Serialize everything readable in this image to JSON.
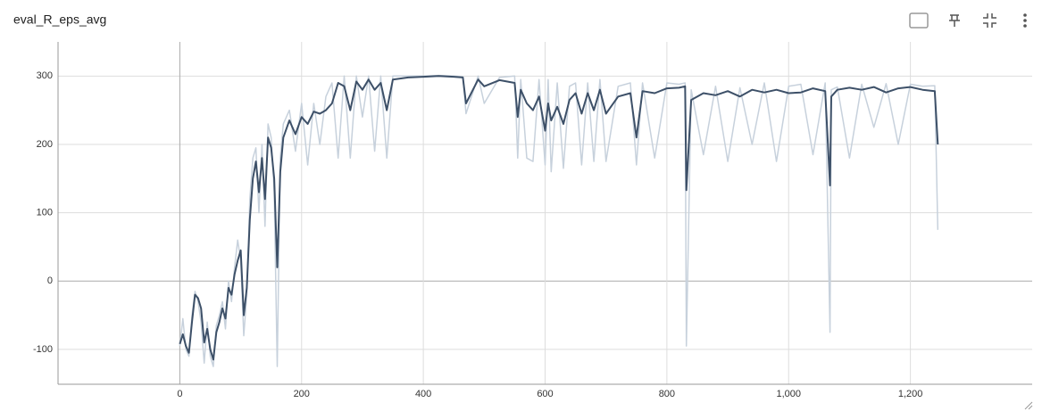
{
  "chart_data": {
    "type": "line",
    "title": "eval_R_eps_avg",
    "x": [
      0,
      5,
      10,
      15,
      20,
      25,
      30,
      35,
      40,
      45,
      50,
      55,
      60,
      65,
      70,
      75,
      80,
      85,
      90,
      95,
      100,
      105,
      110,
      115,
      120,
      125,
      130,
      135,
      140,
      145,
      150,
      155,
      160,
      165,
      170,
      180,
      190,
      200,
      210,
      220,
      230,
      240,
      250,
      260,
      270,
      280,
      290,
      300,
      310,
      320,
      330,
      340,
      350,
      375,
      400,
      425,
      450,
      465,
      470,
      490,
      500,
      525,
      550,
      555,
      560,
      570,
      580,
      590,
      600,
      605,
      610,
      620,
      630,
      640,
      650,
      660,
      670,
      680,
      690,
      700,
      720,
      740,
      750,
      760,
      780,
      800,
      820,
      830,
      832,
      840,
      860,
      880,
      900,
      920,
      940,
      960,
      980,
      1000,
      1020,
      1040,
      1060,
      1068,
      1070,
      1080,
      1100,
      1120,
      1140,
      1160,
      1180,
      1200,
      1220,
      1240,
      1245
    ],
    "series": [
      {
        "color": "#c7d1dc",
        "values": [
          -95,
          -55,
          -100,
          -110,
          -50,
          -15,
          -30,
          -60,
          -120,
          -60,
          -110,
          -125,
          -65,
          -50,
          -30,
          -70,
          0,
          -30,
          20,
          60,
          30,
          -80,
          -20,
          120,
          180,
          195,
          100,
          200,
          80,
          230,
          210,
          130,
          -125,
          180,
          230,
          250,
          190,
          260,
          170,
          260,
          200,
          270,
          290,
          180,
          300,
          180,
          300,
          240,
          300,
          190,
          300,
          180,
          300,
          300,
          300,
          301,
          300,
          299,
          245,
          300,
          260,
          298,
          300,
          180,
          295,
          180,
          175,
          295,
          170,
          295,
          160,
          290,
          165,
          285,
          290,
          170,
          290,
          175,
          295,
          175,
          285,
          290,
          170,
          290,
          180,
          290,
          288,
          290,
          -95,
          280,
          185,
          285,
          175,
          283,
          200,
          290,
          175,
          285,
          288,
          185,
          290,
          -75,
          280,
          284,
          180,
          288,
          225,
          289,
          200,
          288,
          285,
          286,
          75
        ]
      },
      {
        "color": "#3d5068",
        "values": [
          -92,
          -78,
          -95,
          -105,
          -60,
          -20,
          -25,
          -40,
          -90,
          -70,
          -100,
          -115,
          -75,
          -60,
          -40,
          -55,
          -10,
          -20,
          10,
          30,
          45,
          -50,
          -10,
          90,
          150,
          175,
          130,
          180,
          120,
          210,
          195,
          150,
          20,
          160,
          210,
          235,
          215,
          240,
          230,
          248,
          245,
          250,
          260,
          290,
          285,
          250,
          292,
          280,
          295,
          280,
          290,
          250,
          295,
          298,
          299,
          300,
          299,
          298,
          260,
          295,
          285,
          294,
          290,
          240,
          280,
          260,
          250,
          270,
          220,
          260,
          235,
          255,
          230,
          265,
          275,
          245,
          275,
          250,
          280,
          245,
          270,
          275,
          210,
          278,
          275,
          282,
          283,
          285,
          133,
          265,
          275,
          272,
          278,
          270,
          280,
          276,
          280,
          275,
          276,
          282,
          278,
          140,
          270,
          280,
          283,
          280,
          284,
          276,
          282,
          284,
          280,
          278,
          200
        ]
      }
    ],
    "xlim": [
      -200,
      1400
    ],
    "ylim": [
      -151,
      350
    ],
    "xticks": [
      0,
      200,
      400,
      600,
      800,
      {
        "value": 1000,
        "label": "1,000"
      },
      {
        "value": 1200,
        "label": "1,200"
      }
    ],
    "yticks": [
      -100,
      0,
      100,
      200,
      300
    ],
    "grid": true
  }
}
